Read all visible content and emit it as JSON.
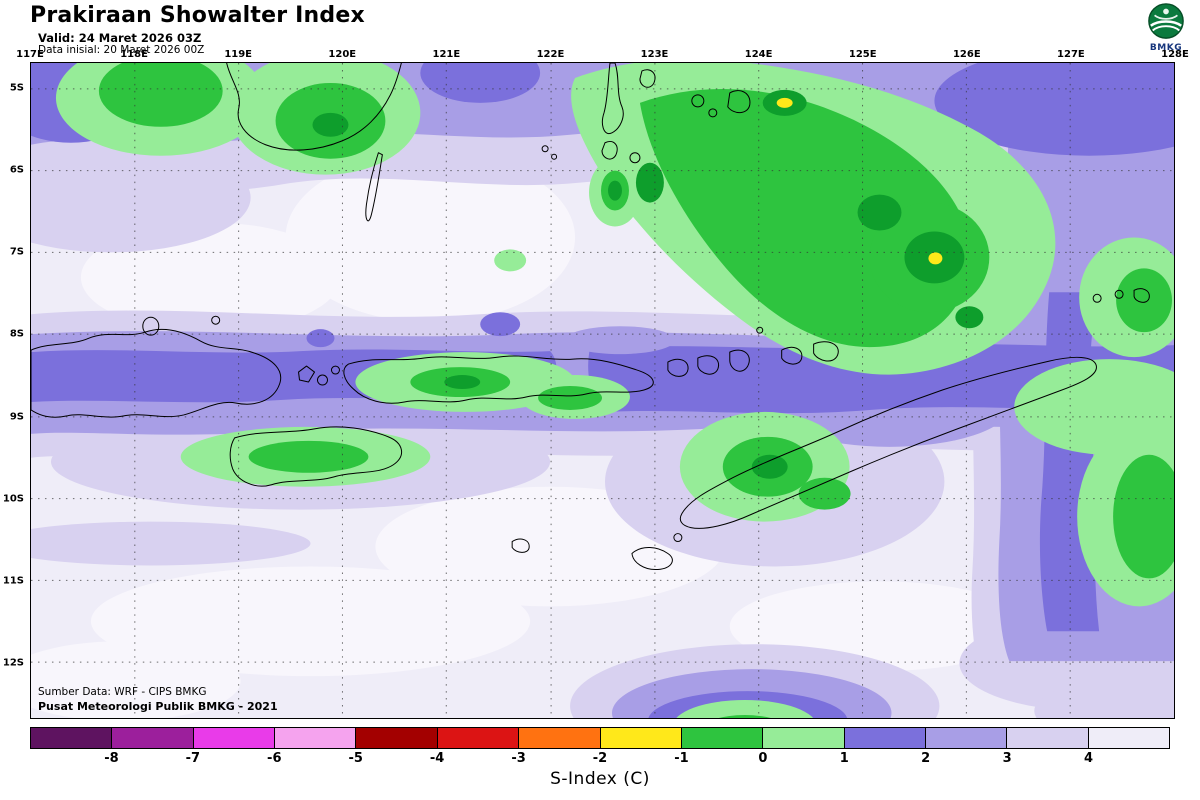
{
  "header": {
    "title": "Prakiraan Showalter Index",
    "valid_line": "Valid: 24 Maret 2026 03Z",
    "init_line": "Data inisial: 20 Maret 2026 00Z",
    "logo_text": "BMKG"
  },
  "map": {
    "lon_labels": [
      "117E",
      "118E",
      "119E",
      "120E",
      "121E",
      "122E",
      "123E",
      "124E",
      "125E",
      "126E",
      "127E",
      "128E"
    ],
    "lat_labels": [
      "5S",
      "6S",
      "7S",
      "8S",
      "9S",
      "10S",
      "11S",
      "12S"
    ],
    "source_line1": "Sumber Data: WRF - CIPS BMKG",
    "source_line2": "Pusat Meteorologi Publik BMKG - 2021"
  },
  "colorbar": {
    "label": "S-Index (C)",
    "ticks": [
      "-8",
      "-7",
      "-6",
      "-5",
      "-4",
      "-3",
      "-2",
      "-1",
      "0",
      "1",
      "2",
      "3",
      "4"
    ],
    "segment_colors": [
      "#5E1360",
      "#9C1F9C",
      "#E93BE9",
      "#F5A3EE",
      "#A30000",
      "#DC1414",
      "#FF7211",
      "#FFE81A",
      "#2EC43F",
      "#96EC98",
      "#7B70DC",
      "#A89EE6",
      "#D8D1F0",
      "#EFEDF8"
    ]
  }
}
